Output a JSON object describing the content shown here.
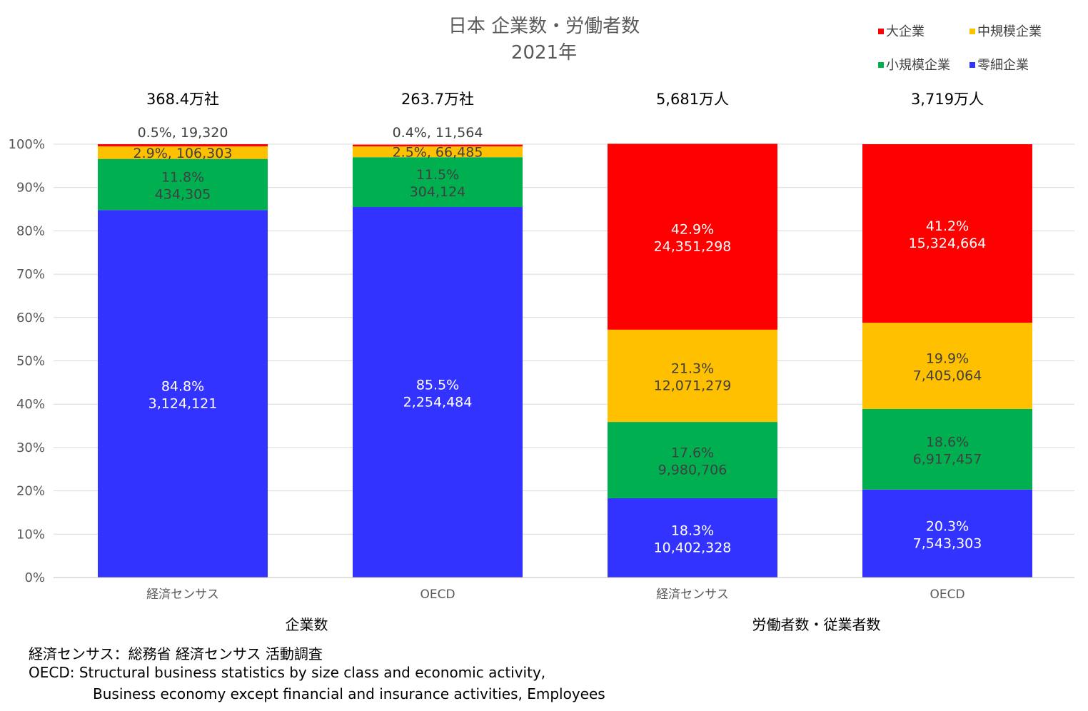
{
  "chart_data": {
    "type": "bar",
    "stacked": true,
    "normalized": true,
    "title": "日本 企業数・労働者数",
    "subtitle": "2021年",
    "categories": [
      "経済センサス",
      "OECD",
      "経済センサス",
      "OECD"
    ],
    "groups": [
      {
        "label": "企業数",
        "category_indices": [
          0,
          1
        ]
      },
      {
        "label": "労働者数・従業者数",
        "category_indices": [
          2,
          3
        ]
      }
    ],
    "totals": [
      "368.4万社",
      "263.7万社",
      "5,681万人",
      "3,719万人"
    ],
    "yticks": [
      "0%",
      "10%",
      "20%",
      "30%",
      "40%",
      "50%",
      "60%",
      "70%",
      "80%",
      "90%",
      "100%"
    ],
    "ylim": [
      0,
      100
    ],
    "grid": true,
    "legend_position": "top-right",
    "series": [
      {
        "name": "零細企業",
        "color": "#3333ff",
        "label_color": "#ffffff",
        "values": [
          84.8,
          85.5,
          18.3,
          20.3
        ],
        "labels": [
          "84.8%",
          "85.5%",
          "18.3%",
          "20.3%"
        ],
        "counts": [
          "3,124,121",
          "2,254,484",
          "10,402,328",
          "7,543,303"
        ]
      },
      {
        "name": "小規模企業",
        "color": "#00b050",
        "label_color": "#404040",
        "values": [
          11.8,
          11.5,
          17.6,
          18.6
        ],
        "labels": [
          "11.8%",
          "11.5%",
          "17.6%",
          "18.6%"
        ],
        "counts": [
          "434,305",
          "304,124",
          "9,980,706",
          "6,917,457"
        ]
      },
      {
        "name": "中規模企業",
        "color": "#ffc000",
        "label_color": "#404040",
        "values": [
          2.9,
          2.5,
          21.3,
          19.9
        ],
        "labels": [
          "2.9%",
          "2.5%",
          "21.3%",
          "19.9%"
        ],
        "counts": [
          "106,303",
          "66,485",
          "12,071,279",
          "7,405,064"
        ]
      },
      {
        "name": "大企業",
        "color": "#ff0000",
        "label_color": "#ffffff",
        "values": [
          0.5,
          0.4,
          42.9,
          41.2
        ],
        "labels": [
          "0.5%",
          "0.4%",
          "42.9%",
          "41.2%"
        ],
        "counts": [
          "19,320",
          "11,564",
          "24,351,298",
          "15,324,664"
        ]
      }
    ],
    "legend_order": [
      "大企業",
      "中規模企業",
      "小規模企業",
      "零細企業"
    ]
  },
  "notes": {
    "line1": "経済センサス：総務省 経済センサス 活動調査",
    "line2": "OECD: Structural business statistics by size class and economic activity,",
    "line3": "Business economy except financial and insurance activities, Employees"
  }
}
